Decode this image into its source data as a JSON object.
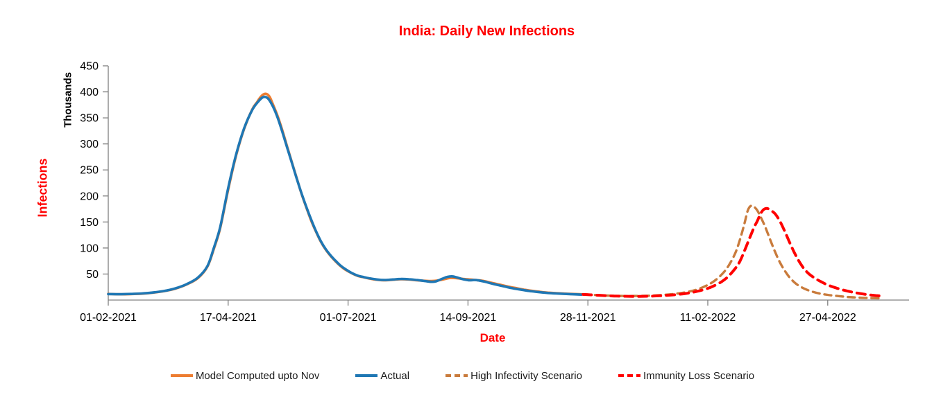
{
  "chart_data": {
    "type": "line",
    "title": "India: Daily New Infections",
    "xlabel": "Date",
    "ylabel": "Infections",
    "y_unit_label": "Thousands",
    "ylim": [
      0,
      450
    ],
    "y_tick_step": 50,
    "y_ticks": [
      50,
      100,
      150,
      200,
      250,
      300,
      350,
      400,
      450
    ],
    "x_unit": "days since 01-02-2021",
    "x_ticks": [
      {
        "day": 0,
        "label": "01-02-2021"
      },
      {
        "day": 75,
        "label": "17-04-2021"
      },
      {
        "day": 150,
        "label": "01-07-2021"
      },
      {
        "day": 225,
        "label": "14-09-2021"
      },
      {
        "day": 300,
        "label": "28-11-2021"
      },
      {
        "day": 375,
        "label": "11-02-2022"
      },
      {
        "day": 450,
        "label": "27-04-2022"
      }
    ],
    "grid": false,
    "legend_position": "bottom",
    "colors": {
      "title": "#FF0000",
      "axis_title": "#FF0000",
      "axis_line": "#808080",
      "tick_label": "#000000"
    },
    "series": [
      {
        "name": "Model Computed upto Nov",
        "color": "#ED7D31",
        "width": 3.6,
        "dash": null,
        "points": [
          [
            0,
            11.8
          ],
          [
            7,
            11
          ],
          [
            14,
            11.5
          ],
          [
            21,
            12.3
          ],
          [
            28,
            14.2
          ],
          [
            35,
            17.2
          ],
          [
            42,
            22
          ],
          [
            49,
            30
          ],
          [
            56,
            42
          ],
          [
            62,
            64
          ],
          [
            66,
            98
          ],
          [
            70,
            138
          ],
          [
            75,
            212
          ],
          [
            80,
            278
          ],
          [
            85,
            329
          ],
          [
            90,
            366
          ],
          [
            93,
            380
          ],
          [
            95,
            389
          ],
          [
            97,
            395
          ],
          [
            99,
            396
          ],
          [
            101,
            390
          ],
          [
            103,
            376
          ],
          [
            106,
            353
          ],
          [
            109,
            325
          ],
          [
            112,
            294
          ],
          [
            115,
            263
          ],
          [
            118,
            233
          ],
          [
            121,
            203
          ],
          [
            124,
            177
          ],
          [
            127,
            152
          ],
          [
            130,
            131
          ],
          [
            133,
            112
          ],
          [
            136,
            97
          ],
          [
            139,
            85
          ],
          [
            142,
            75
          ],
          [
            145,
            66
          ],
          [
            148,
            59
          ],
          [
            152,
            52
          ],
          [
            156,
            46.5
          ],
          [
            160,
            43.5
          ],
          [
            163,
            41.5
          ],
          [
            168,
            39
          ],
          [
            173,
            38
          ],
          [
            178,
            39
          ],
          [
            183,
            40
          ],
          [
            188,
            39.5
          ],
          [
            193,
            38
          ],
          [
            198,
            37
          ],
          [
            202,
            36.5
          ],
          [
            206,
            37.5
          ],
          [
            210,
            40
          ],
          [
            214,
            42.5
          ],
          [
            218,
            42
          ],
          [
            222,
            40.5
          ],
          [
            226,
            39.5
          ],
          [
            230,
            38.5
          ],
          [
            234,
            37
          ],
          [
            240,
            33
          ],
          [
            245,
            29.5
          ],
          [
            250,
            26
          ],
          [
            255,
            23
          ],
          [
            260,
            20
          ],
          [
            265,
            17.7
          ],
          [
            270,
            15.8
          ],
          [
            275,
            14.3
          ],
          [
            280,
            13.2
          ],
          [
            285,
            12.4
          ],
          [
            290,
            11.7
          ],
          [
            296,
            11
          ],
          [
            300,
            10.7
          ]
        ]
      },
      {
        "name": "Actual",
        "color": "#1F77B4",
        "width": 3.6,
        "dash": null,
        "points": [
          [
            0,
            11.5
          ],
          [
            7,
            11.2
          ],
          [
            14,
            11.7
          ],
          [
            21,
            12.6
          ],
          [
            28,
            14.5
          ],
          [
            35,
            17.5
          ],
          [
            42,
            22.5
          ],
          [
            49,
            30.5
          ],
          [
            56,
            43
          ],
          [
            62,
            65
          ],
          [
            66,
            100
          ],
          [
            70,
            140
          ],
          [
            75,
            215
          ],
          [
            80,
            280
          ],
          [
            85,
            330
          ],
          [
            90,
            365
          ],
          [
            94,
            382
          ],
          [
            97,
            390
          ],
          [
            100,
            387
          ],
          [
            103,
            372
          ],
          [
            106,
            350
          ],
          [
            109,
            322
          ],
          [
            112,
            292
          ],
          [
            115,
            262
          ],
          [
            118,
            232
          ],
          [
            121,
            204
          ],
          [
            124,
            178
          ],
          [
            127,
            154
          ],
          [
            130,
            132
          ],
          [
            133,
            113
          ],
          [
            136,
            98
          ],
          [
            139,
            86
          ],
          [
            142,
            76
          ],
          [
            145,
            67
          ],
          [
            148,
            60
          ],
          [
            152,
            52.5
          ],
          [
            156,
            47
          ],
          [
            160,
            44
          ],
          [
            163,
            42
          ],
          [
            168,
            39.5
          ],
          [
            173,
            38.5
          ],
          [
            178,
            39.5
          ],
          [
            183,
            40.5
          ],
          [
            188,
            40
          ],
          [
            193,
            38.5
          ],
          [
            198,
            36.5
          ],
          [
            202,
            35
          ],
          [
            205,
            36
          ],
          [
            209,
            41
          ],
          [
            212,
            44.5
          ],
          [
            215,
            45.5
          ],
          [
            218,
            43.5
          ],
          [
            222,
            40
          ],
          [
            226,
            38
          ],
          [
            229,
            38.5
          ],
          [
            232,
            37.5
          ],
          [
            236,
            35
          ],
          [
            240,
            31.5
          ],
          [
            245,
            28
          ],
          [
            250,
            24.5
          ],
          [
            255,
            21.5
          ],
          [
            260,
            19
          ],
          [
            265,
            16.8
          ],
          [
            270,
            15
          ],
          [
            275,
            13.6
          ],
          [
            280,
            12.6
          ],
          [
            285,
            11.9
          ],
          [
            290,
            11.2
          ],
          [
            296,
            10.4
          ]
        ]
      },
      {
        "name": "High Infectivity Scenario",
        "color": "#C97B3C",
        "width": 3.4,
        "dash": "10 7",
        "points": [
          [
            297,
            10.8
          ],
          [
            305,
            9.6
          ],
          [
            313,
            8.5
          ],
          [
            321,
            7.9
          ],
          [
            329,
            7.8
          ],
          [
            337,
            8.3
          ],
          [
            345,
            9.5
          ],
          [
            353,
            11.5
          ],
          [
            361,
            14.8
          ],
          [
            368,
            20
          ],
          [
            374,
            27.5
          ],
          [
            379,
            36.5
          ],
          [
            384,
            50
          ],
          [
            388,
            66
          ],
          [
            392,
            89
          ],
          [
            395,
            115
          ],
          [
            398,
            148
          ],
          [
            400,
            172
          ],
          [
            402,
            181
          ],
          [
            404,
            179
          ],
          [
            406,
            172
          ],
          [
            408,
            160
          ],
          [
            411,
            140
          ],
          [
            414,
            116
          ],
          [
            417,
            93
          ],
          [
            420,
            73
          ],
          [
            423,
            57
          ],
          [
            426,
            44
          ],
          [
            429,
            34.5
          ],
          [
            432,
            27.5
          ],
          [
            436,
            21
          ],
          [
            440,
            16.5
          ],
          [
            445,
            12.5
          ],
          [
            450,
            10
          ],
          [
            456,
            7.8
          ],
          [
            462,
            6
          ],
          [
            468,
            4.9
          ],
          [
            474,
            4.1
          ],
          [
            480,
            3.6
          ],
          [
            484,
            3.4
          ]
        ]
      },
      {
        "name": "Immunity Loss Scenario",
        "color": "#FF0000",
        "width": 4,
        "dash": "12 8",
        "points": [
          [
            297,
            10.8
          ],
          [
            305,
            9.5
          ],
          [
            313,
            8.2
          ],
          [
            321,
            7.4
          ],
          [
            329,
            7
          ],
          [
            337,
            7.3
          ],
          [
            345,
            8.2
          ],
          [
            353,
            9.9
          ],
          [
            361,
            12.5
          ],
          [
            368,
            16.5
          ],
          [
            374,
            21.5
          ],
          [
            379,
            27.5
          ],
          [
            384,
            36
          ],
          [
            388,
            46
          ],
          [
            392,
            60
          ],
          [
            395,
            74
          ],
          [
            398,
            95
          ],
          [
            401,
            118
          ],
          [
            404,
            140
          ],
          [
            406,
            152
          ],
          [
            408,
            166
          ],
          [
            410,
            174
          ],
          [
            412,
            176
          ],
          [
            414,
            173
          ],
          [
            417,
            166
          ],
          [
            420,
            152
          ],
          [
            423,
            133
          ],
          [
            426,
            112
          ],
          [
            429,
            92
          ],
          [
            432,
            75
          ],
          [
            435,
            61
          ],
          [
            438,
            51
          ],
          [
            442,
            42
          ],
          [
            446,
            35
          ],
          [
            450,
            29
          ],
          [
            455,
            23.5
          ],
          [
            460,
            19
          ],
          [
            465,
            15.5
          ],
          [
            470,
            12.7
          ],
          [
            475,
            10.4
          ],
          [
            480,
            8.7
          ],
          [
            484,
            7.8
          ]
        ]
      }
    ]
  }
}
